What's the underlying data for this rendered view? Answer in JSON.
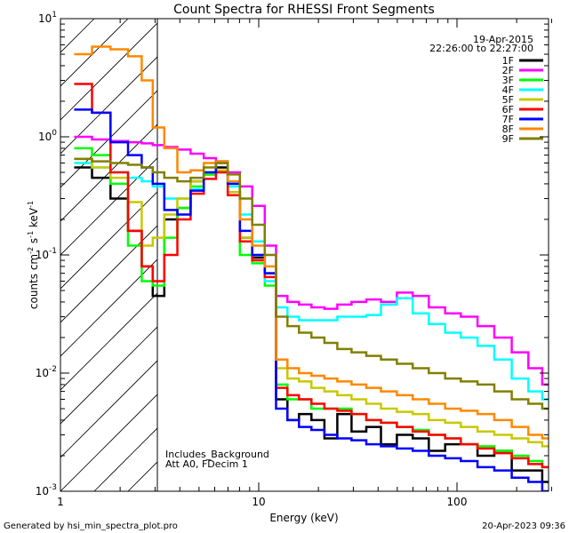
{
  "chart_data": {
    "type": "line",
    "title": "Count Spectra for RHESSI Front Segments",
    "date": "19-Apr-2015",
    "time_range": "22:26:00 to 22:27:00",
    "xlabel": "Energy (keV)",
    "ylabel_parts": [
      "counts cm",
      "-2",
      " s",
      "-1",
      " keV",
      "-1"
    ],
    "xscale": "log",
    "yscale": "log",
    "xlim": [
      1,
      300
    ],
    "ylim": [
      0.001,
      10
    ],
    "x_tick_labels": [
      {
        "value": 1,
        "label": "1"
      },
      {
        "value": 10,
        "label": "10"
      },
      {
        "value": 100,
        "label": "100"
      }
    ],
    "y_tick_labels": [
      {
        "value": 0.001,
        "base": "10",
        "exp": "-3"
      },
      {
        "value": 0.01,
        "base": "10",
        "exp": "-2"
      },
      {
        "value": 0.1,
        "base": "10",
        "exp": "-1"
      },
      {
        "value": 1,
        "base": "10",
        "exp": "0"
      },
      {
        "value": 10,
        "base": "10",
        "exp": "1"
      }
    ],
    "shaded_region": {
      "x_from": 1,
      "x_to": 3,
      "style": "diagonal-hatch"
    },
    "annotations": [
      "Includes_Background",
      "Att A0, FDecim 1"
    ],
    "legend_position": "top-right",
    "series": [
      {
        "name": "1F",
        "color": "#000000",
        "x": [
          1.3,
          1.6,
          2.0,
          2.4,
          2.75,
          3.1,
          3.6,
          4.2,
          4.9,
          5.7,
          6.5,
          7.5,
          8.6,
          10,
          11.5,
          13,
          15,
          17,
          20,
          23,
          27,
          32,
          38,
          45,
          55,
          65,
          80,
          95,
          115,
          140,
          170,
          210,
          250,
          290
        ],
        "y": [
          0.55,
          0.45,
          0.3,
          0.16,
          0.08,
          0.045,
          0.2,
          0.25,
          0.42,
          0.48,
          0.55,
          0.34,
          0.14,
          0.095,
          0.07,
          0.006,
          0.004,
          0.0045,
          0.004,
          0.0028,
          0.0045,
          0.0032,
          0.0035,
          0.0025,
          0.003,
          0.0028,
          0.0022,
          0.0025,
          0.0025,
          0.002,
          0.0022,
          0.0015,
          0.0015,
          0.0012
        ]
      },
      {
        "name": "2F",
        "color": "#ff00ff",
        "x": [
          1.3,
          1.6,
          2.0,
          2.4,
          2.75,
          3.1,
          3.6,
          4.2,
          4.9,
          5.7,
          6.5,
          7.5,
          8.6,
          10,
          11.5,
          13,
          15,
          17,
          20,
          23,
          27,
          32,
          38,
          45,
          55,
          65,
          80,
          95,
          115,
          140,
          170,
          210,
          250,
          290
        ],
        "y": [
          1.0,
          0.95,
          0.92,
          0.9,
          0.88,
          0.85,
          0.82,
          0.78,
          0.72,
          0.66,
          0.6,
          0.5,
          0.38,
          0.26,
          0.12,
          0.045,
          0.04,
          0.038,
          0.036,
          0.035,
          0.038,
          0.04,
          0.042,
          0.04,
          0.048,
          0.045,
          0.036,
          0.032,
          0.03,
          0.025,
          0.02,
          0.015,
          0.011,
          0.008
        ]
      },
      {
        "name": "3F",
        "color": "#00ff00",
        "x": [
          1.3,
          1.6,
          2.0,
          2.4,
          2.75,
          3.1,
          3.6,
          4.2,
          4.9,
          5.7,
          6.5,
          7.5,
          8.6,
          10,
          11.5,
          13,
          15,
          17,
          20,
          23,
          27,
          32,
          38,
          45,
          55,
          65,
          80,
          95,
          115,
          140,
          170,
          210,
          250,
          290
        ],
        "y": [
          0.8,
          0.7,
          0.4,
          0.12,
          0.06,
          0.055,
          0.14,
          0.25,
          0.38,
          0.48,
          0.5,
          0.32,
          0.1,
          0.085,
          0.055,
          0.008,
          0.006,
          0.006,
          0.005,
          0.005,
          0.005,
          0.0045,
          0.004,
          0.0038,
          0.0035,
          0.0033,
          0.003,
          0.0028,
          0.0025,
          0.0024,
          0.0022,
          0.002,
          0.0018,
          0.0016
        ]
      },
      {
        "name": "4F",
        "color": "#00ffff",
        "x": [
          1.3,
          1.6,
          2.0,
          2.4,
          2.75,
          3.1,
          3.6,
          4.2,
          4.9,
          5.7,
          6.5,
          7.5,
          8.6,
          10,
          11.5,
          13,
          15,
          17,
          20,
          23,
          27,
          32,
          38,
          45,
          55,
          65,
          80,
          95,
          115,
          140,
          170,
          210,
          250,
          290
        ],
        "y": [
          0.6,
          0.55,
          0.5,
          0.45,
          0.42,
          0.38,
          0.3,
          0.3,
          0.36,
          0.5,
          0.5,
          0.38,
          0.22,
          0.13,
          0.06,
          0.036,
          0.03,
          0.028,
          0.028,
          0.028,
          0.03,
          0.03,
          0.031,
          0.038,
          0.043,
          0.032,
          0.026,
          0.022,
          0.02,
          0.017,
          0.013,
          0.009,
          0.007,
          0.006
        ]
      },
      {
        "name": "5F",
        "color": "#c8c800",
        "x": [
          1.3,
          1.6,
          2.0,
          2.4,
          2.75,
          3.1,
          3.6,
          4.2,
          4.9,
          5.7,
          6.5,
          7.5,
          8.6,
          10,
          11.5,
          13,
          15,
          17,
          20,
          23,
          27,
          32,
          38,
          45,
          55,
          65,
          80,
          95,
          115,
          140,
          170,
          210,
          250,
          290
        ],
        "y": [
          0.65,
          0.55,
          0.45,
          0.28,
          0.12,
          0.14,
          0.22,
          0.3,
          0.42,
          0.5,
          0.52,
          0.34,
          0.14,
          0.1,
          0.07,
          0.011,
          0.009,
          0.0085,
          0.0075,
          0.007,
          0.0065,
          0.006,
          0.0055,
          0.005,
          0.0047,
          0.0045,
          0.004,
          0.0038,
          0.0035,
          0.0032,
          0.003,
          0.0028,
          0.0026,
          0.0024
        ]
      },
      {
        "name": "6F",
        "color": "#ff0000",
        "x": [
          1.3,
          1.6,
          2.0,
          2.4,
          2.75,
          3.1,
          3.6,
          4.2,
          4.9,
          5.7,
          6.5,
          7.5,
          8.6,
          10,
          11.5,
          13,
          15,
          17,
          20,
          23,
          27,
          32,
          38,
          45,
          55,
          65,
          80,
          95,
          115,
          140,
          170,
          210,
          250,
          290
        ],
        "y": [
          2.8,
          1.6,
          0.5,
          0.16,
          0.08,
          0.06,
          0.1,
          0.2,
          0.33,
          0.44,
          0.5,
          0.32,
          0.13,
          0.09,
          0.065,
          0.0075,
          0.0065,
          0.006,
          0.0055,
          0.005,
          0.0048,
          0.0045,
          0.004,
          0.0038,
          0.0035,
          0.0032,
          0.003,
          0.0028,
          0.0025,
          0.0023,
          0.0021,
          0.0019,
          0.0017,
          0.0016
        ]
      },
      {
        "name": "7F",
        "color": "#0000ff",
        "x": [
          1.3,
          1.6,
          2.0,
          2.4,
          2.75,
          3.1,
          3.6,
          4.2,
          4.9,
          5.7,
          6.5,
          7.5,
          8.6,
          10,
          11.5,
          13,
          15,
          17,
          20,
          23,
          27,
          32,
          38,
          45,
          55,
          65,
          80,
          95,
          115,
          140,
          170,
          210,
          250,
          290
        ],
        "y": [
          1.7,
          1.6,
          0.9,
          0.7,
          0.55,
          0.4,
          0.24,
          0.22,
          0.35,
          0.5,
          0.62,
          0.4,
          0.16,
          0.1,
          0.07,
          0.005,
          0.004,
          0.0035,
          0.0033,
          0.003,
          0.0028,
          0.0027,
          0.0025,
          0.0024,
          0.0023,
          0.0022,
          0.002,
          0.0019,
          0.0018,
          0.0016,
          0.0015,
          0.0013,
          0.0012,
          0.001
        ]
      },
      {
        "name": "8F",
        "color": "#ff8800",
        "x": [
          1.3,
          1.6,
          2.0,
          2.4,
          2.75,
          3.1,
          3.6,
          4.2,
          4.9,
          5.7,
          6.5,
          7.5,
          8.6,
          10,
          11.5,
          13,
          15,
          17,
          20,
          23,
          27,
          32,
          38,
          45,
          55,
          65,
          80,
          95,
          115,
          140,
          170,
          210,
          250,
          290
        ],
        "y": [
          5.0,
          5.8,
          5.5,
          4.8,
          3.0,
          1.2,
          0.8,
          0.5,
          0.52,
          0.6,
          0.62,
          0.42,
          0.2,
          0.12,
          0.08,
          0.013,
          0.011,
          0.01,
          0.0095,
          0.009,
          0.0085,
          0.008,
          0.0075,
          0.007,
          0.0065,
          0.006,
          0.0055,
          0.005,
          0.0048,
          0.0045,
          0.004,
          0.0035,
          0.003,
          0.0028
        ]
      },
      {
        "name": "9F",
        "color": "#808000",
        "x": [
          1.3,
          1.6,
          2.0,
          2.4,
          2.75,
          3.1,
          3.6,
          4.2,
          4.9,
          5.7,
          6.5,
          7.5,
          8.6,
          10,
          11.5,
          13,
          15,
          17,
          20,
          23,
          27,
          32,
          38,
          45,
          55,
          65,
          80,
          95,
          115,
          140,
          170,
          210,
          250,
          290
        ],
        "y": [
          0.65,
          0.62,
          0.6,
          0.58,
          0.55,
          0.5,
          0.45,
          0.42,
          0.45,
          0.55,
          0.6,
          0.48,
          0.3,
          0.18,
          0.1,
          0.03,
          0.025,
          0.022,
          0.02,
          0.018,
          0.016,
          0.015,
          0.014,
          0.013,
          0.012,
          0.011,
          0.01,
          0.009,
          0.0085,
          0.008,
          0.007,
          0.006,
          0.0055,
          0.005
        ]
      }
    ]
  },
  "footer": {
    "generated_by": "Generated by hsi_min_spectra_plot.pro",
    "timestamp": "20-Apr-2023 09:36"
  }
}
